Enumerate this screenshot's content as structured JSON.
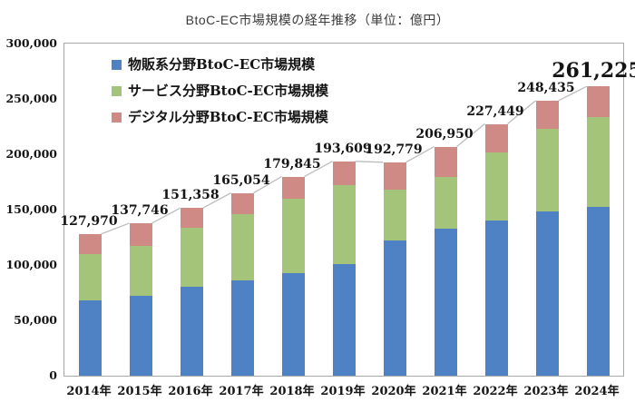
{
  "chart_data": {
    "type": "bar",
    "stacked": true,
    "title": "BtoC-EC市場規模の経年推移（単位：億円）",
    "categories": [
      "2014年",
      "2015年",
      "2016年",
      "2017年",
      "2018年",
      "2019年",
      "2020年",
      "2021年",
      "2022年",
      "2023年",
      "2024年"
    ],
    "series": [
      {
        "name": "物販系分野BtoC-EC市場規模",
        "color": "#4f82c4",
        "values": [
          68043,
          72398,
          80043,
          86008,
          92992,
          100515,
          122333,
          132865,
          139997,
          148335,
          152254
        ]
      },
      {
        "name": "サービス分野BtoC-EC市場規模",
        "color": "#a3c479",
        "values": [
          41672,
          44816,
          53533,
          59568,
          66471,
          71672,
          45832,
          46424,
          61478,
          74230,
          81574
        ]
      },
      {
        "name": "デジタル分野BtoC-EC市場規模",
        "color": "#cf8a86",
        "values": [
          18255,
          20532,
          17782,
          19478,
          20382,
          21422,
          24614,
          27661,
          25974,
          25870,
          27397
        ]
      }
    ],
    "totals": [
      127970,
      137746,
      151358,
      165054,
      179845,
      193609,
      192779,
      206950,
      227449,
      248435,
      261225
    ],
    "y_ticks": [
      0,
      50000,
      100000,
      150000,
      200000,
      250000,
      300000
    ],
    "ylim": [
      0,
      300000
    ],
    "grid": false,
    "legend_position": "top-left-inside",
    "connector_line_color": "#bdbdbd",
    "axis_border_color": "#a8a8a8"
  }
}
